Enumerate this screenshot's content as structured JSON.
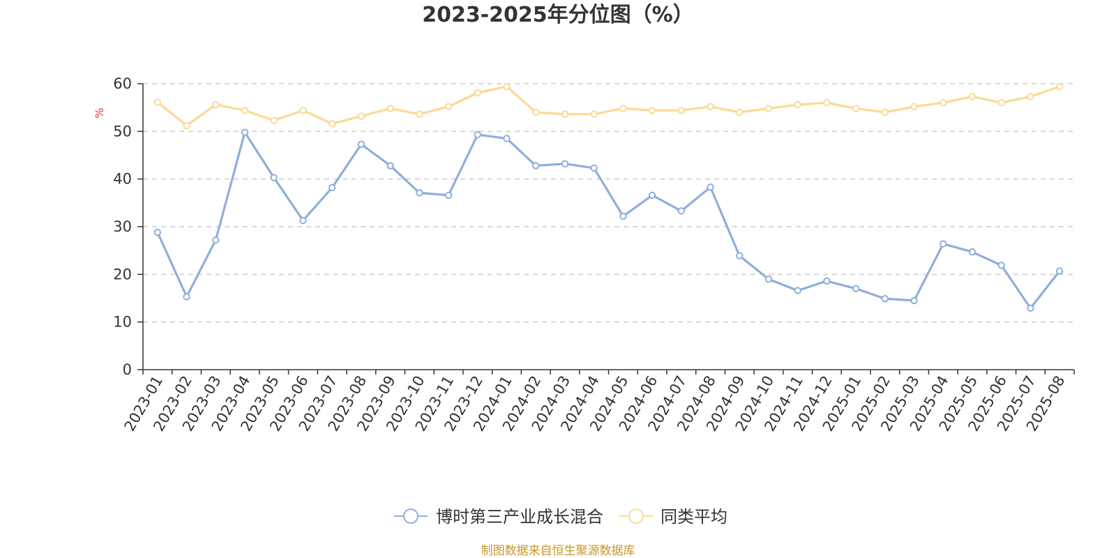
{
  "chart_data": {
    "type": "line",
    "title": "2023-2025年分位图（%）",
    "ylabel": "%",
    "xlabel": "",
    "ylim": [
      0,
      60
    ],
    "yticks": [
      0,
      10,
      20,
      30,
      40,
      50,
      60
    ],
    "grid": true,
    "legend_position": "bottom",
    "categories": [
      "2023-01",
      "2023-02",
      "2023-03",
      "2023-04",
      "2023-05",
      "2023-06",
      "2023-07",
      "2023-08",
      "2023-09",
      "2023-10",
      "2023-11",
      "2023-12",
      "2024-01",
      "2024-02",
      "2024-03",
      "2024-04",
      "2024-05",
      "2024-06",
      "2024-07",
      "2024-08",
      "2024-09",
      "2024-10",
      "2024-11",
      "2024-12",
      "2025-01",
      "2025-02",
      "2025-03",
      "2025-04",
      "2025-05",
      "2025-06",
      "2025-07",
      "2025-08"
    ],
    "series": [
      {
        "name": "博时第三产业成长混合",
        "color": "#8eaedb",
        "values": [
          28.8,
          15.3,
          27.2,
          49.8,
          40.3,
          31.3,
          38.2,
          47.3,
          42.8,
          37.1,
          36.6,
          49.3,
          48.5,
          42.8,
          43.2,
          42.3,
          32.2,
          36.6,
          33.3,
          38.3,
          23.9,
          19.0,
          16.6,
          18.6,
          17.0,
          14.9,
          14.5,
          26.4,
          24.7,
          21.9,
          12.9,
          20.7
        ]
      },
      {
        "name": "同类平均",
        "color": "#fbd995",
        "values": [
          56.1,
          51.2,
          55.6,
          54.4,
          52.3,
          54.4,
          51.6,
          53.2,
          54.8,
          53.6,
          55.2,
          58.1,
          59.4,
          54.0,
          53.6,
          53.6,
          54.8,
          54.4,
          54.4,
          55.2,
          54.0,
          54.8,
          55.6,
          56.0,
          54.8,
          54.0,
          55.2,
          56.0,
          57.3,
          56.0,
          57.3,
          59.4
        ]
      }
    ]
  },
  "footer": {
    "source_note": "制图数据来自恒生聚源数据库"
  }
}
